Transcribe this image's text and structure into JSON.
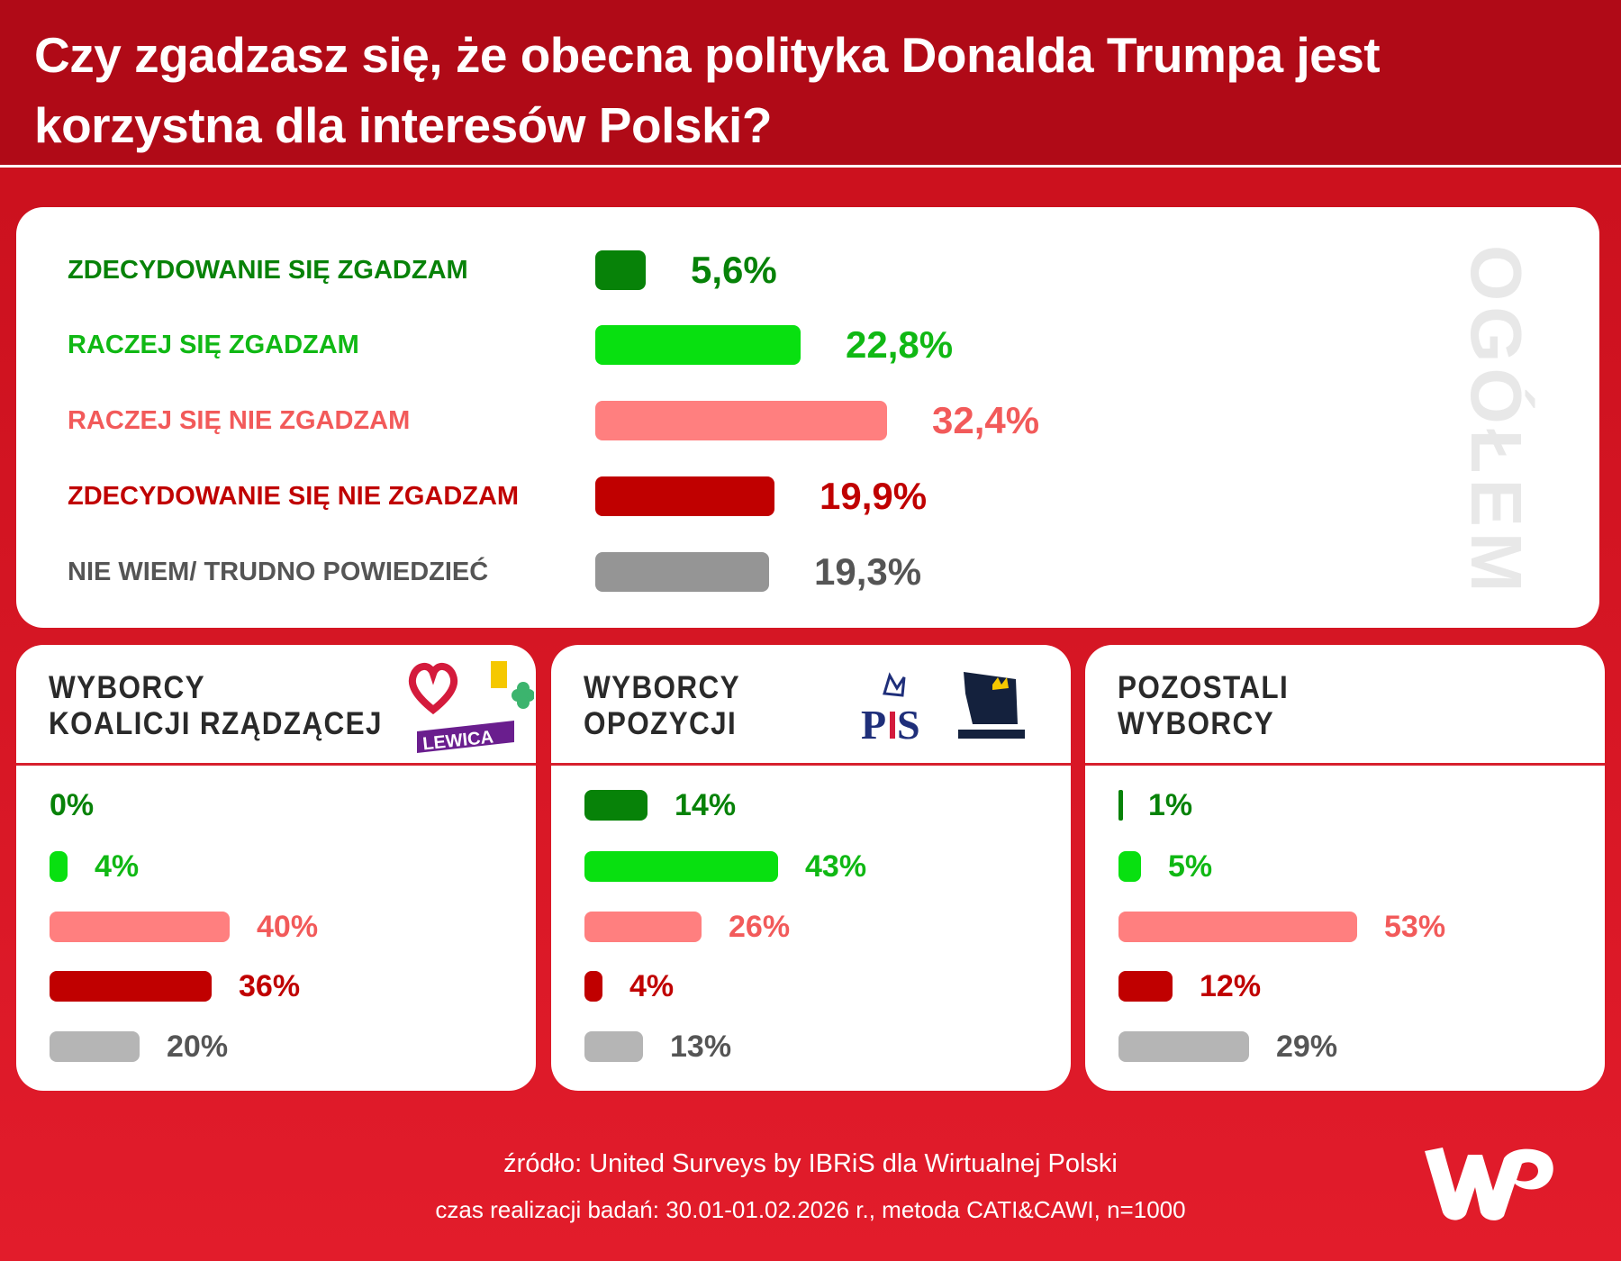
{
  "title": "Czy zgadzasz się, że obecna polityka Donalda Trumpa jest korzystna dla interesów Polski?",
  "chart_data": [
    {
      "type": "bar",
      "orientation": "horizontal",
      "panel_label": "OGÓŁEM",
      "categories": [
        "ZDECYDOWANIE SIĘ ZGADZAM",
        "RACZEJ SIĘ ZGADZAM",
        "RACZEJ SIĘ NIE ZGADZAM",
        "ZDECYDOWANIE SIĘ NIE ZGADZAM",
        "NIE WIEM/ TRUDNO POWIEDZIEĆ"
      ],
      "values": [
        5.6,
        22.8,
        32.4,
        19.9,
        19.3
      ],
      "value_labels": [
        "5,6%",
        "22,8%",
        "32,4%",
        "19,9%",
        "19,3%"
      ],
      "bar_colors": [
        "#078208",
        "#08e010",
        "#ff7f7f",
        "#c00000",
        "#959595"
      ],
      "text_colors": [
        "#078208",
        "#10b814",
        "#f25a5a",
        "#c00000",
        "#555555"
      ]
    },
    {
      "type": "bar",
      "orientation": "horizontal",
      "title": "WYBORCY KOALICJI RZĄDZĄCEJ",
      "title_lines": [
        "WYBORCY",
        "KOALICJI RZĄDZĄCEJ"
      ],
      "values": [
        0,
        4,
        40,
        36,
        20
      ],
      "value_labels": [
        "0%",
        "4%",
        "40%",
        "36%",
        "20%"
      ],
      "logo_text": "LEWICA"
    },
    {
      "type": "bar",
      "orientation": "horizontal",
      "title": "WYBORCY OPOZYCJI",
      "title_lines": [
        "WYBORCY",
        "OPOZYCJI"
      ],
      "values": [
        14,
        43,
        26,
        4,
        13
      ],
      "value_labels": [
        "14%",
        "43%",
        "26%",
        "4%",
        "13%"
      ],
      "logo_text": "PiS / KONFEDERACJA"
    },
    {
      "type": "bar",
      "orientation": "horizontal",
      "title": "POZOSTALI WYBORCY",
      "title_lines": [
        "POZOSTALI",
        "WYBORCY"
      ],
      "values": [
        1,
        5,
        53,
        12,
        29
      ],
      "value_labels": [
        "1%",
        "5%",
        "53%",
        "12%",
        "29%"
      ]
    }
  ],
  "sub_bar_colors": [
    "#078208",
    "#08e010",
    "#ff7f7f",
    "#c00000",
    "#b5b5b5"
  ],
  "sub_text_colors": [
    "#078208",
    "#10b814",
    "#f25a5a",
    "#c00000",
    "#555555"
  ],
  "footer": {
    "source": "źródło: United Surveys by IBRiS dla Wirtualnej Polski",
    "details": "czas realizacji badań: 30.01-01.02.2026 r., metoda CATI&CAWI, n=1000"
  },
  "brand_logo": "WP",
  "colors": {
    "header": "#b00a17",
    "background": "#e21c2b"
  }
}
